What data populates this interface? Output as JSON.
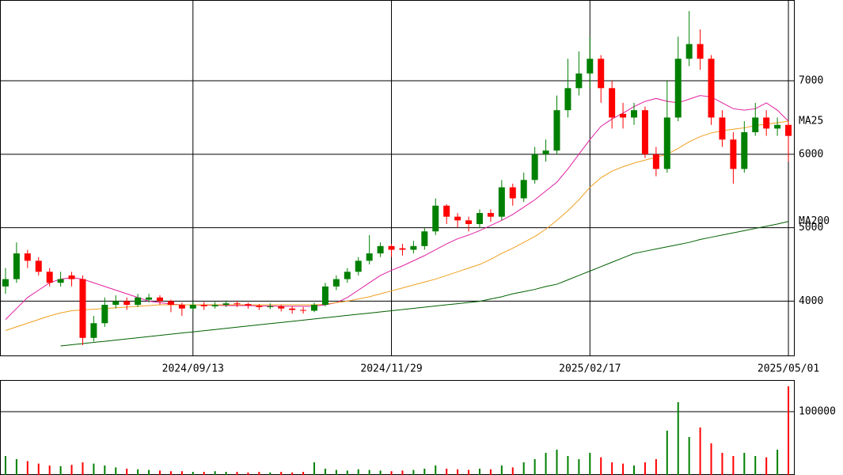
{
  "chart_data": [
    {
      "type": "candlestick",
      "categories": [
        null,
        null,
        null,
        null,
        null,
        null,
        null,
        null,
        null,
        null,
        null,
        null,
        null,
        null,
        null,
        null,
        null,
        "2024/09/13",
        null,
        null,
        null,
        null,
        null,
        null,
        null,
        null,
        null,
        null,
        null,
        null,
        null,
        null,
        null,
        null,
        null,
        "2024/11/29",
        null,
        null,
        null,
        null,
        null,
        null,
        null,
        null,
        null,
        null,
        null,
        null,
        null,
        null,
        null,
        null,
        null,
        "2025/02/17",
        null,
        null,
        null,
        null,
        null,
        null,
        null,
        null,
        null,
        null,
        null,
        null,
        null,
        null,
        null,
        null,
        null,
        "2025/05/01"
      ],
      "open": [
        4200,
        4300,
        4650,
        4550,
        4400,
        4250,
        4350,
        4300,
        3500,
        3700,
        3950,
        4000,
        3950,
        4020,
        4050,
        4000,
        3950,
        3900,
        3950,
        3930,
        3950,
        3970,
        3960,
        3940,
        3920,
        3930,
        3900,
        3880,
        3870,
        3950,
        4200,
        4300,
        4400,
        4550,
        4650,
        4750,
        4720,
        4700,
        4750,
        4950,
        5300,
        5150,
        5100,
        5050,
        5200,
        5150,
        5550,
        5400,
        5650,
        6000,
        6050,
        6600,
        6900,
        7100,
        7300,
        6900,
        6550,
        6500,
        6600,
        6000,
        5800,
        6500,
        7300,
        7500,
        7300,
        6500,
        6200,
        5800,
        6300,
        6500,
        6350,
        6400
      ],
      "high": [
        4450,
        4800,
        4700,
        4600,
        4450,
        4400,
        4400,
        4350,
        3800,
        4050,
        4080,
        4050,
        4100,
        4100,
        4080,
        4020,
        3980,
        4000,
        3990,
        3990,
        4010,
        4000,
        3980,
        3960,
        3970,
        3950,
        3930,
        3920,
        3980,
        4250,
        4350,
        4450,
        4600,
        4900,
        4800,
        4780,
        4780,
        4820,
        5000,
        5400,
        5320,
        5200,
        5150,
        5250,
        5250,
        5650,
        5600,
        5750,
        6100,
        6200,
        6800,
        7300,
        7400,
        7600,
        7350,
        7000,
        6700,
        6700,
        6650,
        6100,
        7000,
        7600,
        7950,
        7700,
        7350,
        6600,
        6300,
        6450,
        6700,
        6600,
        6500,
        6450
      ],
      "low": [
        4100,
        4250,
        4450,
        4350,
        4200,
        4200,
        4200,
        3400,
        3450,
        3650,
        3900,
        3880,
        3920,
        3980,
        3950,
        3850,
        3800,
        3870,
        3880,
        3900,
        3920,
        3920,
        3900,
        3880,
        3890,
        3860,
        3830,
        3830,
        3850,
        3930,
        4150,
        4250,
        4350,
        4500,
        4600,
        4600,
        4620,
        4650,
        4700,
        4900,
        5050,
        5000,
        4950,
        5000,
        5080,
        5100,
        5300,
        5350,
        5600,
        5900,
        6000,
        6500,
        6800,
        6900,
        6700,
        6350,
        6350,
        6400,
        5950,
        5700,
        5750,
        6450,
        7200,
        7150,
        6400,
        6100,
        5600,
        5750,
        6250,
        6250,
        6250,
        5900
      ],
      "close": [
        4300,
        4650,
        4550,
        4400,
        4250,
        4300,
        4300,
        3500,
        3700,
        3950,
        4000,
        3950,
        4050,
        4050,
        4000,
        3950,
        3900,
        3950,
        3930,
        3950,
        3970,
        3960,
        3940,
        3920,
        3930,
        3900,
        3880,
        3870,
        3950,
        4200,
        4300,
        4400,
        4550,
        4650,
        4750,
        4700,
        4700,
        4750,
        4950,
        5300,
        5150,
        5100,
        5050,
        5200,
        5150,
        5550,
        5400,
        5650,
        6000,
        6050,
        6600,
        6900,
        7100,
        7300,
        6900,
        6500,
        6500,
        6600,
        6000,
        5800,
        6500,
        7300,
        7500,
        7300,
        6500,
        6200,
        5800,
        6300,
        6500,
        6350,
        6400,
        6250
      ],
      "up_color": "#008000",
      "down_color": "#ff0000",
      "series": [
        {
          "color": "#e020a0",
          "values": [
            3750,
            3900,
            4050,
            4150,
            4250,
            4300,
            4320,
            4300,
            4250,
            4200,
            4150,
            4100,
            4050,
            4000,
            3980,
            3960,
            3950,
            3950,
            3945,
            3945,
            3940,
            3940,
            3940,
            3935,
            3935,
            3930,
            3930,
            3930,
            3930,
            3950,
            3980,
            4050,
            4150,
            4250,
            4350,
            4420,
            4480,
            4550,
            4620,
            4700,
            4780,
            4850,
            4900,
            4960,
            5030,
            5100,
            5180,
            5280,
            5380,
            5500,
            5620,
            5800,
            6000,
            6200,
            6380,
            6480,
            6560,
            6650,
            6720,
            6760,
            6720,
            6700,
            6750,
            6800,
            6780,
            6700,
            6620,
            6600,
            6620,
            6700,
            6600,
            6450
          ]
        },
        {
          "name": "MA25",
          "color": "#f0a020",
          "values": [
            3600,
            3650,
            3700,
            3750,
            3800,
            3840,
            3870,
            3880,
            3890,
            3900,
            3910,
            3920,
            3930,
            3940,
            3950,
            3950,
            3950,
            3950,
            3950,
            3950,
            3950,
            3950,
            3950,
            3950,
            3950,
            3950,
            3950,
            3950,
            3950,
            3960,
            3980,
            4000,
            4030,
            4060,
            4100,
            4140,
            4180,
            4220,
            4260,
            4300,
            4350,
            4400,
            4450,
            4500,
            4570,
            4650,
            4720,
            4800,
            4880,
            4980,
            5100,
            5230,
            5380,
            5550,
            5680,
            5770,
            5830,
            5880,
            5920,
            5960,
            6000,
            6080,
            6170,
            6240,
            6290,
            6320,
            6340,
            6360,
            6390,
            6410,
            6430,
            6450
          ]
        },
        {
          "name": "MA200",
          "color": "#006000",
          "values": [
            null,
            null,
            null,
            null,
            null,
            3390,
            3406,
            3422,
            3438,
            3454,
            3470,
            3486,
            3502,
            3518,
            3534,
            3550,
            3566,
            3582,
            3598,
            3614,
            3630,
            3646,
            3662,
            3678,
            3694,
            3710,
            3726,
            3742,
            3758,
            3774,
            3790,
            3806,
            3822,
            3838,
            3854,
            3870,
            3886,
            3902,
            3918,
            3934,
            3950,
            3966,
            3982,
            3998,
            4030,
            4060,
            4100,
            4130,
            4160,
            4200,
            4230,
            4290,
            4350,
            4410,
            4470,
            4530,
            4590,
            4650,
            4680,
            4710,
            4740,
            4770,
            4800,
            4840,
            4870,
            4900,
            4930,
            4960,
            4990,
            5020,
            5050,
            5085
          ]
        }
      ],
      "ylim": [
        3250,
        8100
      ],
      "yticks": [
        4000,
        5000,
        6000,
        7000
      ],
      "grid": true
    },
    {
      "type": "bar",
      "values": [
        30000,
        25000,
        22000,
        18000,
        15000,
        14000,
        16000,
        20000,
        18000,
        15000,
        12000,
        10000,
        9000,
        8000,
        7000,
        6000,
        6000,
        5000,
        5000,
        6000,
        5000,
        5000,
        4000,
        5000,
        4000,
        5000,
        4000,
        5000,
        20000,
        10000,
        8000,
        7000,
        9000,
        8000,
        7000,
        6000,
        7000,
        8000,
        10000,
        15000,
        10000,
        9000,
        8000,
        10000,
        9000,
        15000,
        12000,
        20000,
        25000,
        35000,
        40000,
        30000,
        25000,
        35000,
        28000,
        20000,
        18000,
        15000,
        20000,
        25000,
        70000,
        115000,
        60000,
        75000,
        50000,
        35000,
        30000,
        35000,
        30000,
        28000,
        40000,
        140000
      ],
      "ylim": [
        0,
        150000
      ],
      "yticks": [
        100000
      ],
      "grid": true
    }
  ]
}
